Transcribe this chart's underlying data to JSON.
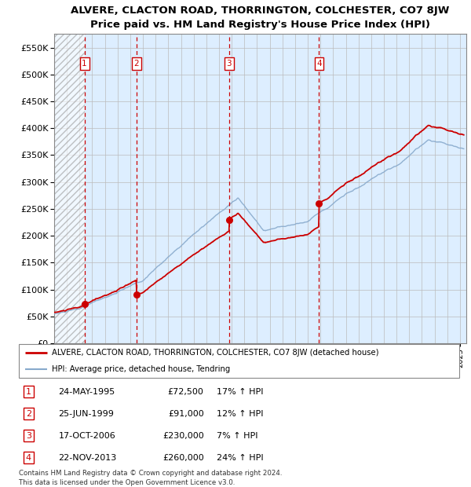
{
  "title": "ALVERE, CLACTON ROAD, THORRINGTON, COLCHESTER, CO7 8JW",
  "subtitle": "Price paid vs. HM Land Registry's House Price Index (HPI)",
  "xlim_start": 1993,
  "xlim_end": 2025.5,
  "ylim_min": 0,
  "ylim_max": 575000,
  "yticks": [
    0,
    50000,
    100000,
    150000,
    200000,
    250000,
    300000,
    350000,
    400000,
    450000,
    500000,
    550000
  ],
  "ytick_labels": [
    "£0",
    "£50K",
    "£100K",
    "£150K",
    "£200K",
    "£250K",
    "£300K",
    "£350K",
    "£400K",
    "£450K",
    "£500K",
    "£550K"
  ],
  "price_paid_color": "#cc0000",
  "hpi_color": "#88aacc",
  "sale_marker_color": "#cc0000",
  "sale_vline_color": "#cc0000",
  "background_fill_color": "#ddeeff",
  "grid_color": "#bbbbbb",
  "sales": [
    {
      "num": 1,
      "year": 1995.39,
      "price": 72500
    },
    {
      "num": 2,
      "year": 1999.48,
      "price": 91000
    },
    {
      "num": 3,
      "year": 2006.79,
      "price": 230000
    },
    {
      "num": 4,
      "year": 2013.89,
      "price": 260000
    }
  ],
  "legend_label_price": "ALVERE, CLACTON ROAD, THORRINGTON, COLCHESTER, CO7 8JW (detached house)",
  "legend_label_hpi": "HPI: Average price, detached house, Tendring",
  "table_rows": [
    {
      "num": 1,
      "date": "24-MAY-1995",
      "price": "£72,500",
      "hpi": "17% ↑ HPI"
    },
    {
      "num": 2,
      "date": "25-JUN-1999",
      "price": "£91,000",
      "hpi": "12% ↑ HPI"
    },
    {
      "num": 3,
      "date": "17-OCT-2006",
      "price": "£230,000",
      "hpi": "7% ↑ HPI"
    },
    {
      "num": 4,
      "date": "22-NOV-2013",
      "price": "£260,000",
      "hpi": "24% ↑ HPI"
    }
  ],
  "footer": "Contains HM Land Registry data © Crown copyright and database right 2024.\nThis data is licensed under the Open Government Licence v3.0."
}
